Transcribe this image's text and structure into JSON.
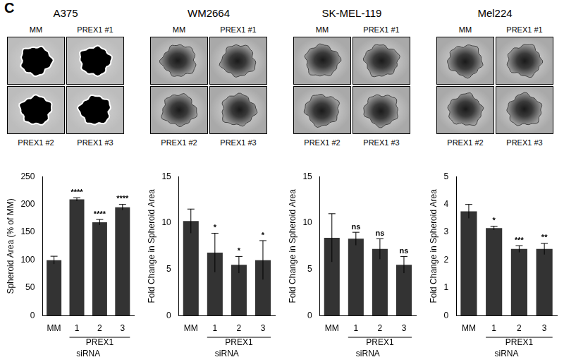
{
  "panel_label": "C",
  "image_panels": [
    {
      "title": "A375",
      "labels": [
        "MM",
        "PREX1  #1",
        "PREX1  #2",
        "PREX1  #3"
      ]
    },
    {
      "title": "WM2664",
      "labels": [
        "MM",
        "PREX1  #1",
        "PREX1  #2",
        "PREX1  #3"
      ]
    },
    {
      "title": "SK-MEL-119",
      "labels": [
        "MM",
        "PREX1  #1",
        "PREX1  #2",
        "PREX1  #3"
      ]
    },
    {
      "title": "Mel224",
      "labels": [
        "MM",
        "PREX1  #1",
        "PREX1  #2",
        "PREX1  #3"
      ]
    }
  ],
  "chart_data": [
    {
      "type": "bar",
      "categories": [
        "MM",
        "1",
        "2",
        "3"
      ],
      "values": [
        100,
        209,
        168,
        195
      ],
      "errors": [
        7,
        3,
        5,
        5
      ],
      "significance": [
        null,
        "****",
        "****",
        "****"
      ],
      "group_label": "PREX1",
      "xlabel": "siRNA",
      "ylabel": "Spheroid Area (% of MM)",
      "color": "#333333",
      "ylim": [
        0,
        250
      ],
      "yticks": [
        0,
        50,
        100,
        150,
        200,
        250
      ],
      "grid": false
    },
    {
      "type": "bar",
      "categories": [
        "MM",
        "1",
        "2",
        "3"
      ],
      "values": [
        10.2,
        6.8,
        5.5,
        6.0
      ],
      "errors": [
        1.3,
        2.1,
        0.9,
        2.1
      ],
      "significance": [
        null,
        "*",
        "*",
        "*"
      ],
      "group_label": "PREX1",
      "xlabel": "siRNA",
      "ylabel": "Fold Change in Spheroid Area",
      "color": "#333333",
      "ylim": [
        0,
        15
      ],
      "yticks": [
        0,
        5,
        10,
        15
      ],
      "grid": false
    },
    {
      "type": "bar",
      "categories": [
        "MM",
        "1",
        "2",
        "3"
      ],
      "values": [
        8.4,
        8.3,
        7.2,
        5.5
      ],
      "errors": [
        2.6,
        0.7,
        1.1,
        0.9
      ],
      "significance": [
        null,
        "ns",
        "ns",
        "ns"
      ],
      "group_label": "PREX1",
      "xlabel": "siRNA",
      "ylabel": "Fold Change in Spheroid Area",
      "color": "#333333",
      "ylim": [
        0,
        15
      ],
      "yticks": [
        0,
        5,
        10,
        15
      ],
      "grid": false
    },
    {
      "type": "bar",
      "categories": [
        "MM",
        "1",
        "2",
        "3"
      ],
      "values": [
        3.75,
        3.15,
        2.4,
        2.4
      ],
      "errors": [
        0.25,
        0.07,
        0.12,
        0.2
      ],
      "significance": [
        null,
        "*",
        "***",
        "**"
      ],
      "group_label": "PREX1",
      "xlabel": "siRNA",
      "ylabel": "Fold Change in Spheroid Area",
      "color": "#333333",
      "ylim": [
        0,
        5
      ],
      "yticks": [
        0,
        1,
        2,
        3,
        4,
        5
      ],
      "grid": false
    }
  ]
}
